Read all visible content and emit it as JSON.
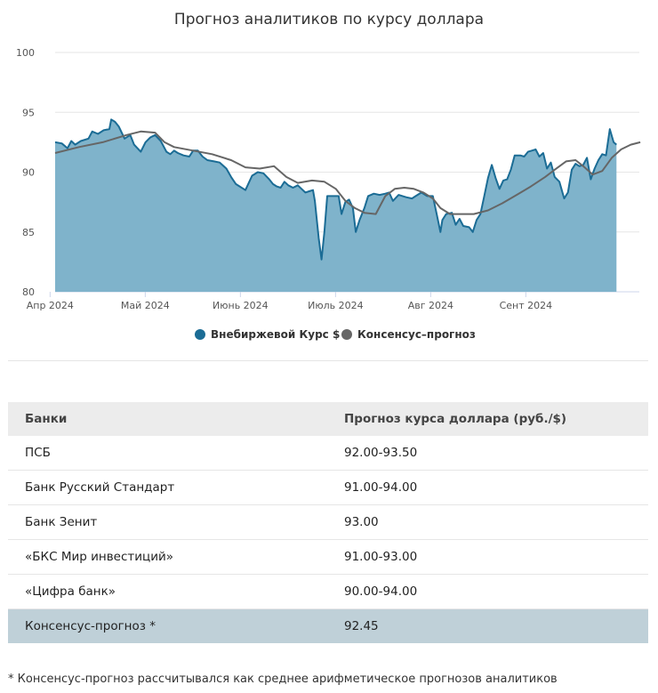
{
  "chart_data": {
    "type": "area",
    "title": "Прогноз аналитиков по курсу доллара",
    "ylim": [
      80,
      100
    ],
    "yticks": [
      80,
      85,
      90,
      95,
      100
    ],
    "xlim": [
      0,
      6.05
    ],
    "xticks": [
      {
        "label": "Апр 2024",
        "pos": 0.1
      },
      {
        "label": "Май 2024",
        "pos": 1.1
      },
      {
        "label": "Июнь 2024",
        "pos": 2.1
      },
      {
        "label": "Июль 2024",
        "pos": 3.1
      },
      {
        "label": "Авг 2024",
        "pos": 4.1
      },
      {
        "label": "Сент 2024",
        "pos": 5.1
      }
    ],
    "grid": true,
    "legend_position": "bottom",
    "series": [
      {
        "name": "Внебиржевой Курс $",
        "color": "#1b6c95",
        "fill": "#7fb3cb",
        "type": "area",
        "points": [
          [
            0.05,
            92.5
          ],
          [
            0.12,
            92.4
          ],
          [
            0.18,
            92.0
          ],
          [
            0.22,
            92.6
          ],
          [
            0.26,
            92.3
          ],
          [
            0.32,
            92.6
          ],
          [
            0.4,
            92.8
          ],
          [
            0.44,
            93.4
          ],
          [
            0.5,
            93.2
          ],
          [
            0.56,
            93.5
          ],
          [
            0.62,
            93.6
          ],
          [
            0.64,
            94.4
          ],
          [
            0.68,
            94.2
          ],
          [
            0.72,
            93.8
          ],
          [
            0.78,
            92.8
          ],
          [
            0.84,
            93.1
          ],
          [
            0.88,
            92.3
          ],
          [
            0.95,
            91.7
          ],
          [
            1.0,
            92.5
          ],
          [
            1.05,
            92.9
          ],
          [
            1.1,
            93.1
          ],
          [
            1.16,
            92.6
          ],
          [
            1.22,
            91.7
          ],
          [
            1.26,
            91.5
          ],
          [
            1.3,
            91.8
          ],
          [
            1.34,
            91.6
          ],
          [
            1.4,
            91.4
          ],
          [
            1.46,
            91.3
          ],
          [
            1.5,
            91.8
          ],
          [
            1.55,
            91.8
          ],
          [
            1.6,
            91.3
          ],
          [
            1.65,
            91.0
          ],
          [
            1.72,
            90.9
          ],
          [
            1.78,
            90.8
          ],
          [
            1.85,
            90.3
          ],
          [
            1.9,
            89.6
          ],
          [
            1.95,
            89.0
          ],
          [
            2.05,
            88.5
          ],
          [
            2.12,
            89.7
          ],
          [
            2.18,
            90.0
          ],
          [
            2.24,
            89.9
          ],
          [
            2.3,
            89.4
          ],
          [
            2.34,
            89.0
          ],
          [
            2.38,
            88.8
          ],
          [
            2.42,
            88.7
          ],
          [
            2.46,
            89.2
          ],
          [
            2.5,
            88.9
          ],
          [
            2.55,
            88.7
          ],
          [
            2.6,
            88.9
          ],
          [
            2.64,
            88.6
          ],
          [
            2.68,
            88.3
          ],
          [
            2.72,
            88.4
          ],
          [
            2.76,
            88.5
          ],
          [
            2.78,
            87.6
          ],
          [
            2.82,
            84.5
          ],
          [
            2.85,
            82.7
          ],
          [
            2.88,
            85.0
          ],
          [
            2.91,
            88.0
          ],
          [
            2.97,
            88.0
          ],
          [
            3.03,
            88.0
          ],
          [
            3.06,
            86.5
          ],
          [
            3.1,
            87.5
          ],
          [
            3.14,
            87.7
          ],
          [
            3.18,
            87.0
          ],
          [
            3.21,
            85.0
          ],
          [
            3.25,
            86.0
          ],
          [
            3.3,
            87.0
          ],
          [
            3.34,
            88.0
          ],
          [
            3.4,
            88.2
          ],
          [
            3.46,
            88.1
          ],
          [
            3.52,
            88.2
          ],
          [
            3.56,
            88.3
          ],
          [
            3.6,
            87.6
          ],
          [
            3.66,
            88.1
          ],
          [
            3.74,
            87.9
          ],
          [
            3.8,
            87.8
          ],
          [
            3.84,
            88.0
          ],
          [
            3.9,
            88.3
          ],
          [
            3.96,
            88.0
          ],
          [
            4.02,
            88.0
          ],
          [
            4.06,
            86.5
          ],
          [
            4.1,
            85.0
          ],
          [
            4.12,
            86.0
          ],
          [
            4.16,
            86.5
          ],
          [
            4.22,
            86.6
          ],
          [
            4.26,
            85.6
          ],
          [
            4.3,
            86.1
          ],
          [
            4.34,
            85.5
          ],
          [
            4.4,
            85.4
          ],
          [
            4.44,
            85.0
          ],
          [
            4.48,
            86.0
          ],
          [
            4.52,
            86.5
          ],
          [
            4.56,
            88.0
          ],
          [
            4.6,
            89.5
          ],
          [
            4.64,
            90.6
          ],
          [
            4.68,
            89.5
          ],
          [
            4.72,
            88.6
          ],
          [
            4.76,
            89.3
          ],
          [
            4.8,
            89.4
          ],
          [
            4.84,
            90.2
          ],
          [
            4.88,
            91.4
          ],
          [
            4.94,
            91.4
          ],
          [
            4.98,
            91.3
          ],
          [
            5.02,
            91.7
          ],
          [
            5.06,
            91.8
          ],
          [
            5.1,
            91.9
          ],
          [
            5.14,
            91.3
          ],
          [
            5.18,
            91.6
          ],
          [
            5.22,
            90.3
          ],
          [
            5.26,
            90.8
          ],
          [
            5.3,
            89.6
          ],
          [
            5.35,
            89.2
          ],
          [
            5.4,
            87.8
          ],
          [
            5.44,
            88.3
          ],
          [
            5.48,
            90.2
          ],
          [
            5.52,
            90.7
          ],
          [
            5.56,
            90.5
          ],
          [
            5.6,
            90.6
          ],
          [
            5.64,
            91.2
          ],
          [
            5.68,
            89.4
          ],
          [
            5.72,
            90.3
          ],
          [
            5.76,
            91.0
          ],
          [
            5.8,
            91.5
          ],
          [
            5.84,
            91.4
          ],
          [
            5.88,
            93.6
          ],
          [
            5.92,
            92.5
          ],
          [
            5.95,
            92.3
          ]
        ]
      },
      {
        "name": "Консенсус–прогноз",
        "color": "#666666",
        "type": "line",
        "points": [
          [
            0.05,
            91.6
          ],
          [
            0.3,
            92.1
          ],
          [
            0.55,
            92.5
          ],
          [
            0.8,
            93.1
          ],
          [
            0.95,
            93.4
          ],
          [
            1.1,
            93.3
          ],
          [
            1.2,
            92.5
          ],
          [
            1.3,
            92.1
          ],
          [
            1.5,
            91.8
          ],
          [
            1.7,
            91.5
          ],
          [
            1.9,
            91.0
          ],
          [
            2.05,
            90.4
          ],
          [
            2.2,
            90.3
          ],
          [
            2.35,
            90.5
          ],
          [
            2.48,
            89.6
          ],
          [
            2.6,
            89.1
          ],
          [
            2.75,
            89.3
          ],
          [
            2.88,
            89.2
          ],
          [
            3.0,
            88.6
          ],
          [
            3.1,
            87.6
          ],
          [
            3.2,
            87.0
          ],
          [
            3.3,
            86.6
          ],
          [
            3.42,
            86.5
          ],
          [
            3.52,
            88.0
          ],
          [
            3.62,
            88.6
          ],
          [
            3.72,
            88.7
          ],
          [
            3.82,
            88.6
          ],
          [
            3.92,
            88.3
          ],
          [
            4.02,
            87.8
          ],
          [
            4.1,
            87.0
          ],
          [
            4.2,
            86.5
          ],
          [
            4.32,
            86.5
          ],
          [
            4.45,
            86.5
          ],
          [
            4.6,
            86.8
          ],
          [
            4.75,
            87.4
          ],
          [
            4.9,
            88.1
          ],
          [
            5.05,
            88.8
          ],
          [
            5.2,
            89.6
          ],
          [
            5.3,
            90.2
          ],
          [
            5.42,
            90.9
          ],
          [
            5.52,
            91.0
          ],
          [
            5.6,
            90.5
          ],
          [
            5.7,
            89.8
          ],
          [
            5.8,
            90.1
          ],
          [
            5.9,
            91.2
          ],
          [
            6.0,
            91.9
          ],
          [
            6.1,
            92.3
          ],
          [
            6.2,
            92.5
          ]
        ]
      }
    ]
  },
  "table": {
    "headers": [
      "Банки",
      "Прогноз курса доллара (руб./$)"
    ],
    "rows": [
      {
        "bank": "ПСБ",
        "forecast": "92.00-93.50"
      },
      {
        "bank": "Банк Русский Стандарт",
        "forecast": "91.00-94.00"
      },
      {
        "bank": "Банк Зенит",
        "forecast": "93.00"
      },
      {
        "bank": "«БКС Мир инвестиций»",
        "forecast": "91.00-93.00"
      },
      {
        "bank": "«Цифра банк»",
        "forecast": "90.00-94.00"
      }
    ],
    "consensus": {
      "bank": "Консенсус-прогноз *",
      "forecast": "92.45"
    }
  },
  "footnote": "* Консенсус-прогноз рассчитывался как среднее арифметическое прогнозов аналитиков"
}
